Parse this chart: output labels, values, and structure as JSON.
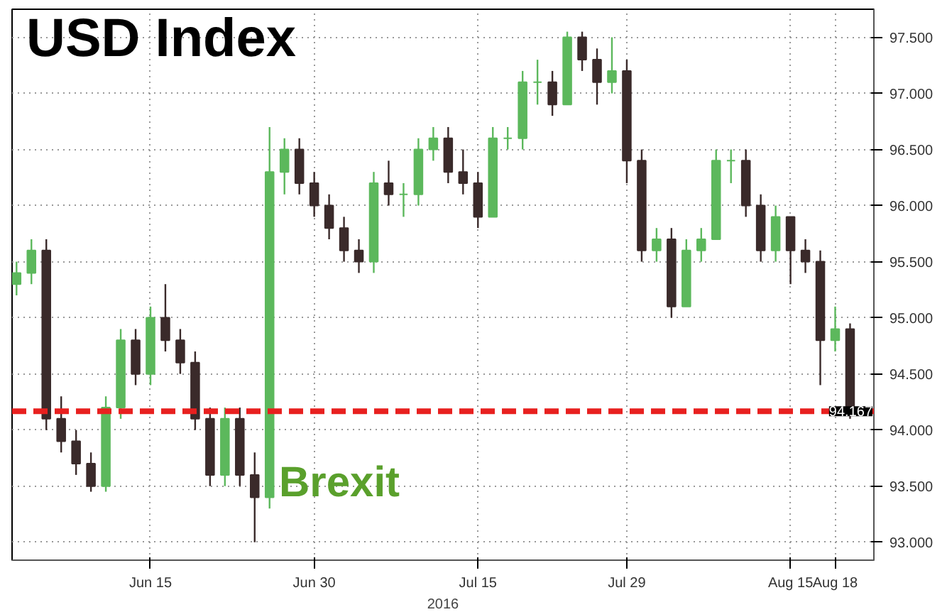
{
  "chart_data": {
    "type": "candlestick",
    "title": "USD Index",
    "xlabel": "2016",
    "categories": [
      null,
      null,
      null,
      null,
      null,
      null,
      null,
      null,
      null,
      "Jun 15",
      null,
      null,
      null,
      null,
      null,
      null,
      null,
      null,
      null,
      null,
      "Jun 30",
      null,
      null,
      null,
      null,
      null,
      null,
      null,
      null,
      null,
      null,
      "Jul 15",
      null,
      null,
      null,
      null,
      null,
      null,
      null,
      null,
      null,
      "Jul 29",
      null,
      null,
      null,
      null,
      null,
      null,
      null,
      null,
      null,
      null,
      "Aug 15",
      null,
      null,
      "Aug 18",
      null
    ],
    "ohlc": [
      [
        95.3,
        95.5,
        95.2,
        95.4
      ],
      [
        95.4,
        95.7,
        95.3,
        95.6
      ],
      [
        95.6,
        95.7,
        94.0,
        94.1
      ],
      [
        94.1,
        94.3,
        93.8,
        93.9
      ],
      [
        93.9,
        94.0,
        93.6,
        93.7
      ],
      [
        93.7,
        93.8,
        93.45,
        93.5
      ],
      [
        93.5,
        94.3,
        93.45,
        94.2
      ],
      [
        94.2,
        94.9,
        94.1,
        94.8
      ],
      [
        94.8,
        94.9,
        94.4,
        94.5
      ],
      [
        94.5,
        95.1,
        94.4,
        95.0
      ],
      [
        95.0,
        95.3,
        94.7,
        94.8
      ],
      [
        94.8,
        94.9,
        94.5,
        94.6
      ],
      [
        94.6,
        94.7,
        94.0,
        94.1
      ],
      [
        94.1,
        94.2,
        93.5,
        93.6
      ],
      [
        93.6,
        94.2,
        93.5,
        94.1
      ],
      [
        94.1,
        94.2,
        93.5,
        93.6
      ],
      [
        93.6,
        93.8,
        93.0,
        93.4
      ],
      [
        93.4,
        96.7,
        93.3,
        96.3
      ],
      [
        96.3,
        96.6,
        96.1,
        96.5
      ],
      [
        96.5,
        96.6,
        96.1,
        96.2
      ],
      [
        96.2,
        96.3,
        95.9,
        96.0
      ],
      [
        96.0,
        96.1,
        95.7,
        95.8
      ],
      [
        95.8,
        95.9,
        95.5,
        95.6
      ],
      [
        95.6,
        95.7,
        95.4,
        95.5
      ],
      [
        95.5,
        96.3,
        95.4,
        96.2
      ],
      [
        96.2,
        96.4,
        96.0,
        96.1
      ],
      [
        96.1,
        96.2,
        95.9,
        96.1
      ],
      [
        96.1,
        96.6,
        96.0,
        96.5
      ],
      [
        96.5,
        96.7,
        96.4,
        96.6
      ],
      [
        96.6,
        96.7,
        96.2,
        96.3
      ],
      [
        96.3,
        96.5,
        96.1,
        96.2
      ],
      [
        96.2,
        96.3,
        95.8,
        95.9
      ],
      [
        95.9,
        96.7,
        95.9,
        96.6
      ],
      [
        96.6,
        96.7,
        96.5,
        96.6
      ],
      [
        96.6,
        97.2,
        96.5,
        97.1
      ],
      [
        97.1,
        97.3,
        96.9,
        97.1
      ],
      [
        97.1,
        97.2,
        96.8,
        96.9
      ],
      [
        96.9,
        97.55,
        96.9,
        97.5
      ],
      [
        97.5,
        97.55,
        97.2,
        97.3
      ],
      [
        97.3,
        97.4,
        96.9,
        97.1
      ],
      [
        97.1,
        97.5,
        97.0,
        97.2
      ],
      [
        97.2,
        97.3,
        96.2,
        96.4
      ],
      [
        96.4,
        96.5,
        95.5,
        95.6
      ],
      [
        95.6,
        95.8,
        95.5,
        95.7
      ],
      [
        95.7,
        95.8,
        95.0,
        95.1
      ],
      [
        95.1,
        95.7,
        95.1,
        95.6
      ],
      [
        95.6,
        95.8,
        95.5,
        95.7
      ],
      [
        95.7,
        96.5,
        95.7,
        96.4
      ],
      [
        96.4,
        96.5,
        96.2,
        96.4
      ],
      [
        96.4,
        96.5,
        95.9,
        96.0
      ],
      [
        96.0,
        96.1,
        95.5,
        95.6
      ],
      [
        95.6,
        96.0,
        95.5,
        95.9
      ],
      [
        95.9,
        95.9,
        95.3,
        95.6
      ],
      [
        95.6,
        95.7,
        95.4,
        95.5
      ],
      [
        95.5,
        95.6,
        94.4,
        94.8
      ],
      [
        94.8,
        95.1,
        94.7,
        94.9
      ],
      [
        94.9,
        94.95,
        94.1,
        94.167
      ]
    ],
    "colors": [
      "#5cb85c",
      "#5cb85c",
      "#3a2a2a",
      "#3a2a2a",
      "#3a2a2a",
      "#3a2a2a",
      "#5cb85c",
      "#5cb85c",
      "#3a2a2a",
      "#5cb85c",
      "#3a2a2a",
      "#3a2a2a",
      "#3a2a2a",
      "#3a2a2a",
      "#5cb85c",
      "#3a2a2a",
      "#3a2a2a",
      "#5cb85c",
      "#5cb85c",
      "#3a2a2a",
      "#3a2a2a",
      "#3a2a2a",
      "#3a2a2a",
      "#3a2a2a",
      "#5cb85c",
      "#3a2a2a",
      "#5cb85c",
      "#5cb85c",
      "#5cb85c",
      "#3a2a2a",
      "#3a2a2a",
      "#3a2a2a",
      "#5cb85c",
      "#5cb85c",
      "#5cb85c",
      "#5cb85c",
      "#3a2a2a",
      "#5cb85c",
      "#3a2a2a",
      "#3a2a2a",
      "#5cb85c",
      "#3a2a2a",
      "#3a2a2a",
      "#5cb85c",
      "#3a2a2a",
      "#5cb85c",
      "#5cb85c",
      "#5cb85c",
      "#5cb85c",
      "#3a2a2a",
      "#3a2a2a",
      "#5cb85c",
      "#3a2a2a",
      "#3a2a2a",
      "#3a2a2a",
      "#5cb85c",
      "#3a2a2a"
    ],
    "ylim": [
      92.84,
      97.75
    ],
    "yticks": [
      {
        "value": 93,
        "label": "93.000"
      },
      {
        "value": 93.5,
        "label": "93.500"
      },
      {
        "value": 94,
        "label": "94.000"
      },
      {
        "value": 94.5,
        "label": "94.500"
      },
      {
        "value": 95,
        "label": "95.000"
      },
      {
        "value": 95.5,
        "label": "95.500"
      },
      {
        "value": 96,
        "label": "96.000"
      },
      {
        "value": 96.5,
        "label": "96.500"
      },
      {
        "value": 97,
        "label": "97.000"
      },
      {
        "value": 97.5,
        "label": "97.500"
      }
    ],
    "ref_lines": [
      {
        "axis": "y",
        "value": 94.167,
        "label": "94.167",
        "color": "#e8201f",
        "line_style": "dashed"
      }
    ],
    "annotations": [
      "Brexit"
    ],
    "grid": true
  }
}
